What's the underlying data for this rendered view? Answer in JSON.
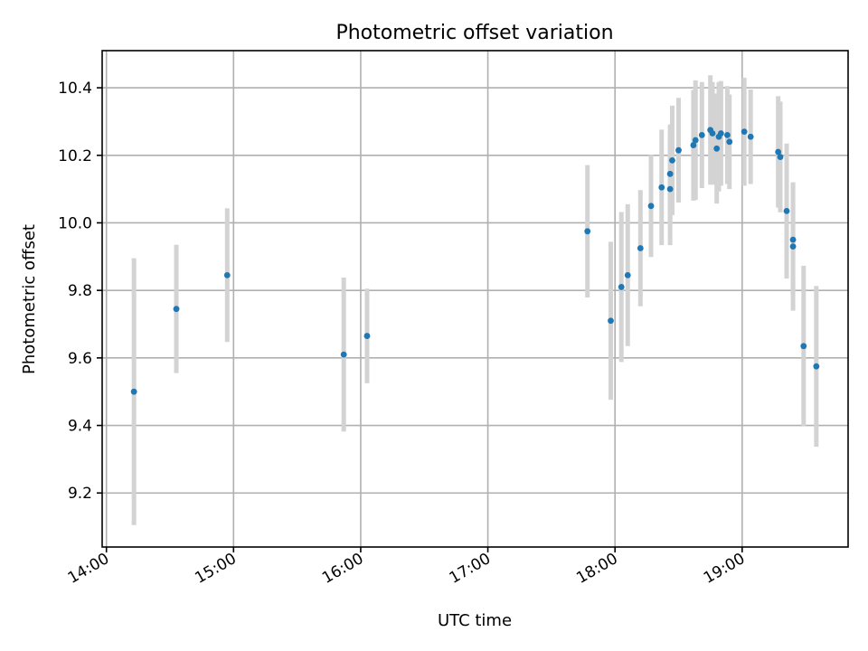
{
  "chart_data": {
    "type": "scatter",
    "title": "Photometric offset variation",
    "xlabel": "UTC time",
    "ylabel": "Photometric offset",
    "grid": true,
    "xlim": [
      "13:58",
      "19:50"
    ],
    "ylim": [
      9.04,
      10.51
    ],
    "x_ticks": [
      "14:00",
      "15:00",
      "16:00",
      "17:00",
      "18:00",
      "19:00"
    ],
    "y_ticks": [
      "9.2",
      "9.4",
      "9.6",
      "9.8",
      "10.0",
      "10.2",
      "10.4"
    ],
    "colors": {
      "points": "#1f77b4",
      "errorbars": "#d3d3d3",
      "grid": "#b0b0b0"
    },
    "series": [
      {
        "points": [
          {
            "x": "14:13",
            "y": 9.5,
            "err": 0.395
          },
          {
            "x": "14:33",
            "y": 9.745,
            "err": 0.19
          },
          {
            "x": "14:57",
            "y": 9.845,
            "err": 0.198
          },
          {
            "x": "15:52",
            "y": 9.61,
            "err": 0.228
          },
          {
            "x": "16:03",
            "y": 9.665,
            "err": 0.14
          },
          {
            "x": "17:47",
            "y": 9.975,
            "err": 0.196
          },
          {
            "x": "17:58",
            "y": 9.71,
            "err": 0.234
          },
          {
            "x": "18:03",
            "y": 9.81,
            "err": 0.222
          },
          {
            "x": "18:06",
            "y": 9.845,
            "err": 0.21
          },
          {
            "x": "18:12",
            "y": 9.925,
            "err": 0.172
          },
          {
            "x": "18:17",
            "y": 10.05,
            "err": 0.151
          },
          {
            "x": "18:22",
            "y": 10.105,
            "err": 0.171
          },
          {
            "x": "18:26",
            "y": 10.145,
            "err": 0.146
          },
          {
            "x": "18:26",
            "y": 10.1,
            "err": 0.166
          },
          {
            "x": "18:27",
            "y": 10.185,
            "err": 0.162
          },
          {
            "x": "18:30",
            "y": 10.215,
            "err": 0.155
          },
          {
            "x": "18:37",
            "y": 10.23,
            "err": 0.164
          },
          {
            "x": "18:38",
            "y": 10.245,
            "err": 0.177
          },
          {
            "x": "18:41",
            "y": 10.26,
            "err": 0.157
          },
          {
            "x": "18:45",
            "y": 10.275,
            "err": 0.162
          },
          {
            "x": "18:46",
            "y": 10.265,
            "err": 0.152
          },
          {
            "x": "18:48",
            "y": 10.22,
            "err": 0.163
          },
          {
            "x": "18:49",
            "y": 10.255,
            "err": 0.162
          },
          {
            "x": "18:50",
            "y": 10.265,
            "err": 0.155
          },
          {
            "x": "18:53",
            "y": 10.26,
            "err": 0.145
          },
          {
            "x": "18:54",
            "y": 10.24,
            "err": 0.14
          },
          {
            "x": "19:01",
            "y": 10.27,
            "err": 0.16
          },
          {
            "x": "19:04",
            "y": 10.255,
            "err": 0.14
          },
          {
            "x": "19:17",
            "y": 10.21,
            "err": 0.165
          },
          {
            "x": "19:18",
            "y": 10.195,
            "err": 0.164
          },
          {
            "x": "19:21",
            "y": 10.035,
            "err": 0.2
          },
          {
            "x": "19:24",
            "y": 9.95,
            "err": 0.165
          },
          {
            "x": "19:24",
            "y": 9.93,
            "err": 0.19
          },
          {
            "x": "19:29",
            "y": 9.635,
            "err": 0.238
          },
          {
            "x": "19:35",
            "y": 9.575,
            "err": 0.238
          }
        ]
      }
    ]
  }
}
